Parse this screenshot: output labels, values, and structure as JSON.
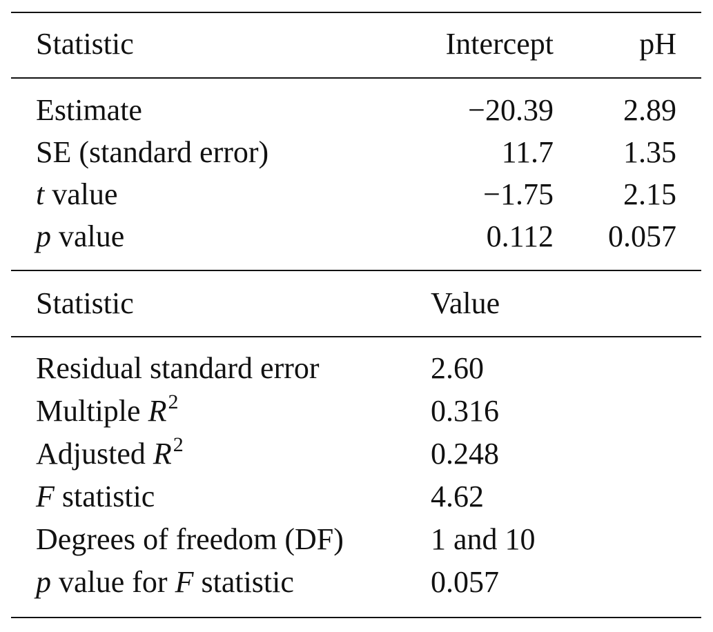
{
  "table1": {
    "header": {
      "statistic": "Statistic",
      "intercept": "Intercept",
      "ph": "pH"
    },
    "rows": [
      {
        "label": "Estimate",
        "intercept": "−20.39",
        "ph": "2.89"
      },
      {
        "label": "SE (standard error)",
        "intercept": "11.7",
        "ph": "1.35"
      },
      {
        "label_italic": "t",
        "label_rest": " value",
        "intercept": "−1.75",
        "ph": "2.15"
      },
      {
        "label_italic": "p",
        "label_rest": " value",
        "intercept": "0.112",
        "ph": "0.057"
      }
    ]
  },
  "table2": {
    "header": {
      "statistic": "Statistic",
      "value": "Value"
    },
    "rows": [
      {
        "label": "Residual standard error",
        "value": "2.60"
      },
      {
        "label_pre": "Multiple ",
        "label_italic": "R",
        "label_sup": "2",
        "value": "0.316"
      },
      {
        "label_pre": "Adjusted ",
        "label_italic": "R",
        "label_sup": "2",
        "value": "0.248"
      },
      {
        "label_italic": "F",
        "label_rest": " statistic",
        "value": "4.62"
      },
      {
        "label": "Degrees of freedom (DF)",
        "value": "1 and 10"
      },
      {
        "label_italic": "p",
        "label_mid": " value for ",
        "label_italic2": "F",
        "label_rest": " statistic",
        "value": "0.057"
      }
    ]
  }
}
